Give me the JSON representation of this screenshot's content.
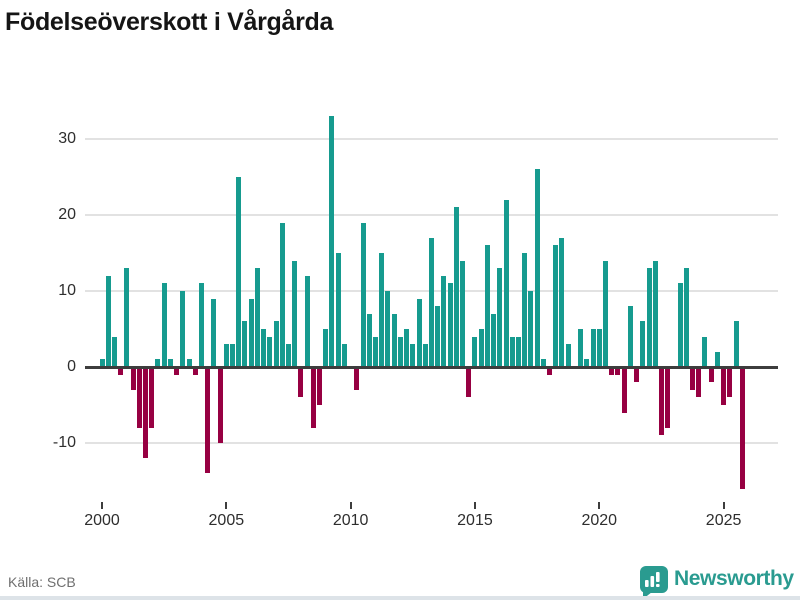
{
  "title": "Födelseöverskott i Vårgårda",
  "source": {
    "label": "Källa: SCB"
  },
  "branding": {
    "wordmark": "Newsworthy",
    "badge_icon": "bar-chart-exclamation-icon",
    "color": "#2a9b90"
  },
  "colors": {
    "positive_bar": "#169b8f",
    "negative_bar": "#970042",
    "gridline": "#e2e2e2",
    "zero_axis": "#3d3d3d",
    "text": "#2e2e2e",
    "muted_text": "#6f6f6f"
  },
  "chart_data": {
    "type": "bar",
    "title": "Födelseöverskott i Vårgårda",
    "xlabel": "",
    "ylabel": "",
    "frequency": "quarterly",
    "grid": true,
    "legend": false,
    "y_ticks": [
      30,
      20,
      10,
      0,
      -10
    ],
    "ylim": [
      -17,
      34
    ],
    "x_tick_labels": [
      "2000",
      "2005",
      "2010",
      "2015",
      "2020",
      "2025"
    ],
    "series": [
      {
        "year": 2000,
        "values": [
          1,
          12,
          4,
          -1
        ]
      },
      {
        "year": 2001,
        "values": [
          13,
          -3,
          -8,
          -12
        ]
      },
      {
        "year": 2002,
        "values": [
          -8,
          1,
          11,
          1
        ]
      },
      {
        "year": 2003,
        "values": [
          -1,
          10,
          1,
          -1
        ]
      },
      {
        "year": 2004,
        "values": [
          11,
          -14,
          9,
          -10
        ]
      },
      {
        "year": 2005,
        "values": [
          3,
          3,
          25,
          6
        ]
      },
      {
        "year": 2006,
        "values": [
          9,
          13,
          5,
          4
        ]
      },
      {
        "year": 2007,
        "values": [
          6,
          19,
          3,
          14
        ]
      },
      {
        "year": 2008,
        "values": [
          -4,
          12,
          -8,
          -5
        ]
      },
      {
        "year": 2009,
        "values": [
          5,
          33,
          15,
          3
        ]
      },
      {
        "year": 2010,
        "values": [
          0,
          -3,
          19,
          7
        ]
      },
      {
        "year": 2011,
        "values": [
          4,
          15,
          10,
          7
        ]
      },
      {
        "year": 2012,
        "values": [
          4,
          5,
          3,
          9
        ]
      },
      {
        "year": 2013,
        "values": [
          3,
          17,
          8,
          12
        ]
      },
      {
        "year": 2014,
        "values": [
          11,
          21,
          14,
          -4
        ]
      },
      {
        "year": 2015,
        "values": [
          4,
          5,
          16,
          7
        ]
      },
      {
        "year": 2016,
        "values": [
          13,
          22,
          4,
          4
        ]
      },
      {
        "year": 2017,
        "values": [
          15,
          10,
          26,
          1
        ]
      },
      {
        "year": 2018,
        "values": [
          -1,
          16,
          17,
          3
        ]
      },
      {
        "year": 2019,
        "values": [
          0,
          5,
          1,
          5
        ]
      },
      {
        "year": 2020,
        "values": [
          5,
          14,
          -1,
          -1
        ]
      },
      {
        "year": 2021,
        "values": [
          -6,
          8,
          -2,
          6
        ]
      },
      {
        "year": 2022,
        "values": [
          13,
          14,
          -9,
          -8
        ]
      },
      {
        "year": 2023,
        "values": [
          0,
          11,
          13,
          -3
        ]
      },
      {
        "year": 2024,
        "values": [
          -4,
          4,
          -2,
          2
        ]
      },
      {
        "year": 2025,
        "values": [
          -5,
          -4,
          6,
          -16
        ]
      }
    ]
  }
}
